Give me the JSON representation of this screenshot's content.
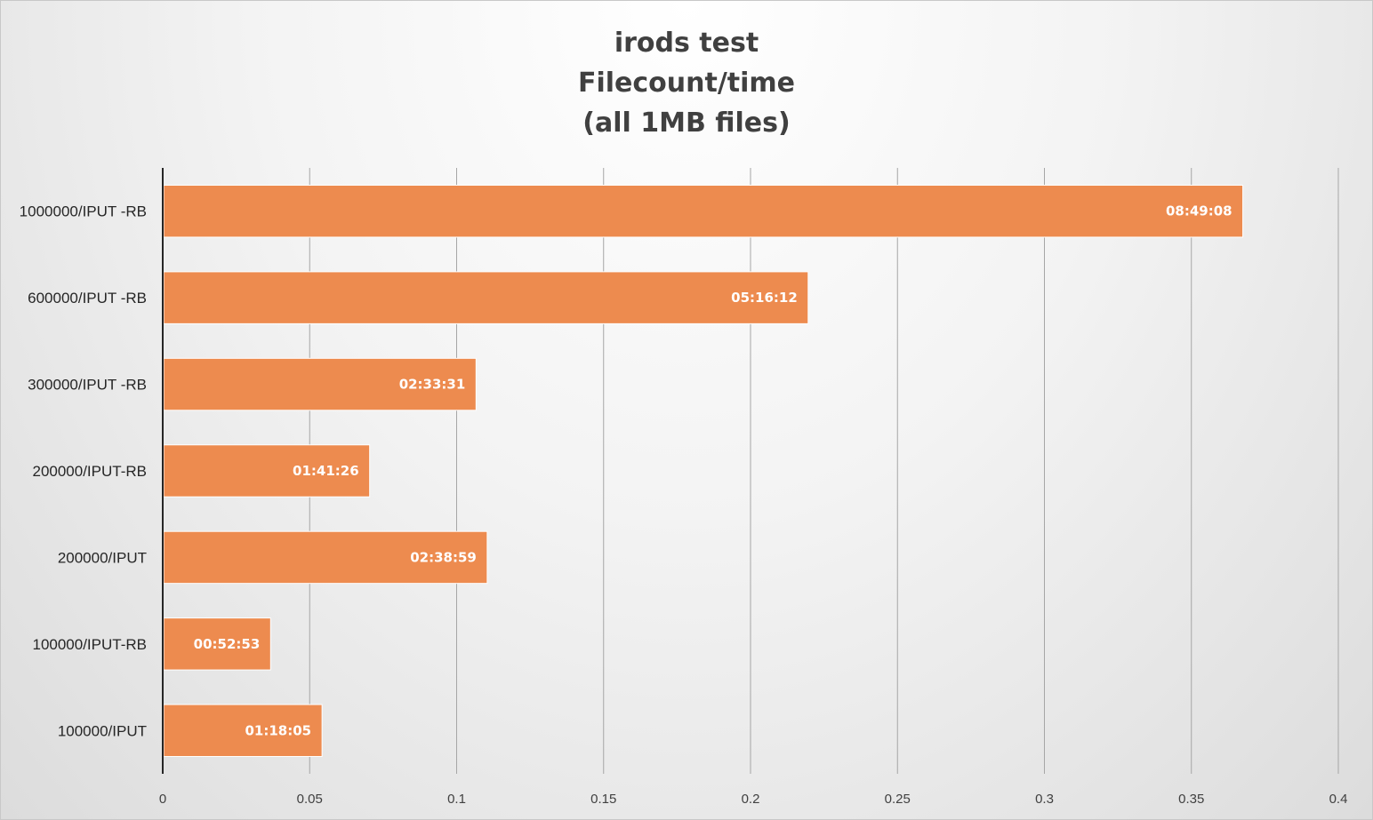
{
  "chart_data": {
    "type": "bar",
    "orientation": "horizontal",
    "title_lines": [
      "irods test",
      "Filecount/time",
      "(all 1MB files)"
    ],
    "xlabel": "",
    "ylabel": "",
    "xlim": [
      0,
      0.4
    ],
    "x_ticks": [
      "0",
      "0.05",
      "0.1",
      "0.15",
      "0.2",
      "0.25",
      "0.3",
      "0.35",
      "0.4"
    ],
    "x_tick_values": [
      0,
      0.05,
      0.1,
      0.15,
      0.2,
      0.25,
      0.3,
      0.35,
      0.4
    ],
    "grid": "vertical",
    "legend": "none",
    "categories": [
      "1000000/IPUT -RB",
      "600000/IPUT -RB",
      "300000/IPUT -RB",
      "200000/IPUT-RB",
      "200000/IPUT",
      "100000/IPUT-RB",
      "100000/IPUT"
    ],
    "values": [
      0.3675,
      0.2196,
      0.1066,
      0.0704,
      0.1104,
      0.0367,
      0.0542
    ],
    "data_labels": [
      "08:49:08",
      "05:16:12",
      "02:33:31",
      "01:41:26",
      "02:38:59",
      "00:52:53",
      "01:18:05"
    ],
    "bar_color": "#ED8B4F",
    "title_color": "#404040"
  }
}
